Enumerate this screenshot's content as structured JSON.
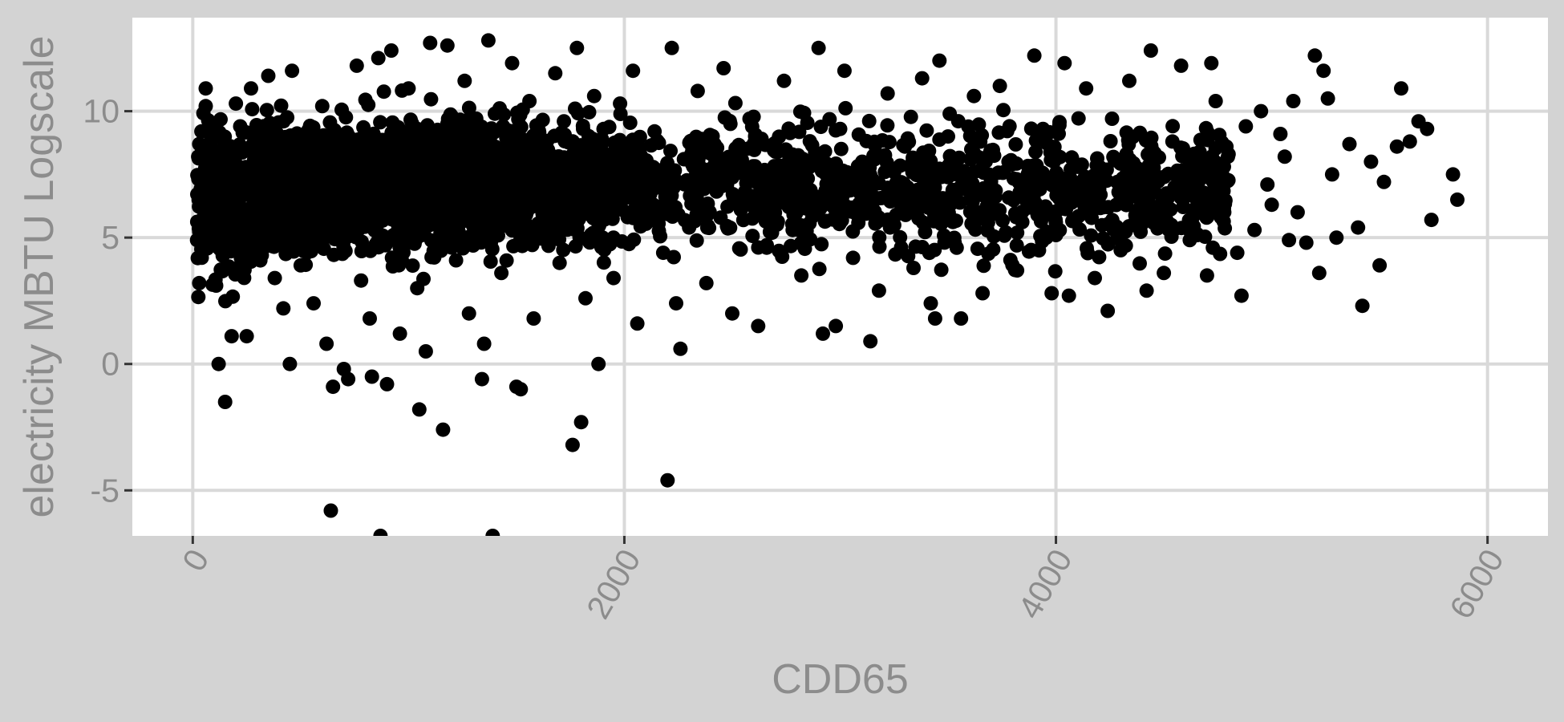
{
  "chart_data": {
    "type": "scatter",
    "title": "",
    "xlabel": "CDD65",
    "ylabel": "electricity MBTU Logscale",
    "xlim": [
      -280,
      6280
    ],
    "ylim": [
      -6.8,
      13.7
    ],
    "x_ticks": [
      0,
      2000,
      4000,
      6000
    ],
    "x_tick_labels": [
      "0",
      "2000",
      "4000",
      "6000"
    ],
    "y_ticks": [
      -5,
      0,
      5,
      10
    ],
    "y_tick_labels": [
      "-5",
      "0",
      "5",
      "10"
    ],
    "grid": true,
    "legend": "none",
    "colors": {
      "background": "#d3d3d3",
      "panel": "#ffffff",
      "grid": "#d9d9d9",
      "point": "#000000",
      "text": "#8c8c8c"
    },
    "points": [
      [
        20,
        4.9
      ],
      [
        30,
        8.7
      ],
      [
        40,
        9.2
      ],
      [
        25,
        8.2
      ],
      [
        60,
        10.2
      ],
      [
        60,
        10.9
      ],
      [
        50,
        5.8
      ],
      [
        80,
        5.5
      ],
      [
        30,
        3.2
      ],
      [
        70,
        7.3
      ],
      [
        120,
        0.0
      ],
      [
        150,
        -1.5
      ],
      [
        160,
        6.4
      ],
      [
        180,
        1.1
      ],
      [
        200,
        10.3
      ],
      [
        220,
        9.4
      ],
      [
        250,
        1.1
      ],
      [
        270,
        10.9
      ],
      [
        300,
        5.2
      ],
      [
        320,
        4.3
      ],
      [
        350,
        11.4
      ],
      [
        380,
        3.4
      ],
      [
        400,
        8.5
      ],
      [
        420,
        2.2
      ],
      [
        450,
        0.0
      ],
      [
        460,
        11.6
      ],
      [
        480,
        6.0
      ],
      [
        500,
        3.9
      ],
      [
        520,
        7.2
      ],
      [
        540,
        9.3
      ],
      [
        560,
        2.4
      ],
      [
        600,
        10.2
      ],
      [
        620,
        0.8
      ],
      [
        650,
        8.7
      ],
      [
        700,
        -0.2
      ],
      [
        720,
        -0.6
      ],
      [
        650,
        -0.9
      ],
      [
        640,
        -5.8
      ],
      [
        760,
        11.8
      ],
      [
        780,
        3.3
      ],
      [
        800,
        6.9
      ],
      [
        820,
        1.8
      ],
      [
        830,
        -0.5
      ],
      [
        860,
        12.1
      ],
      [
        880,
        4.7
      ],
      [
        900,
        -0.8
      ],
      [
        920,
        12.4
      ],
      [
        940,
        8.1
      ],
      [
        960,
        1.2
      ],
      [
        980,
        5.3
      ],
      [
        1000,
        10.9
      ],
      [
        1040,
        3.0
      ],
      [
        1050,
        -1.8
      ],
      [
        1080,
        0.5
      ],
      [
        1100,
        12.7
      ],
      [
        1130,
        7.7
      ],
      [
        1160,
        -2.6
      ],
      [
        1180,
        12.6
      ],
      [
        1200,
        9.8
      ],
      [
        1220,
        4.1
      ],
      [
        1240,
        6.3
      ],
      [
        1260,
        11.2
      ],
      [
        1280,
        2.0
      ],
      [
        1300,
        8.4
      ],
      [
        1320,
        5.8
      ],
      [
        1340,
        -0.6
      ],
      [
        1350,
        0.8
      ],
      [
        1370,
        12.8
      ],
      [
        1400,
        9.9
      ],
      [
        1430,
        3.6
      ],
      [
        1460,
        7.1
      ],
      [
        1480,
        11.9
      ],
      [
        1500,
        -0.9
      ],
      [
        1520,
        -1.0
      ],
      [
        1540,
        5.6
      ],
      [
        1560,
        10.4
      ],
      [
        1580,
        1.8
      ],
      [
        1620,
        8.8
      ],
      [
        1650,
        6.2
      ],
      [
        1680,
        11.5
      ],
      [
        1700,
        4.0
      ],
      [
        1720,
        9.6
      ],
      [
        1760,
        -3.2
      ],
      [
        1780,
        12.5
      ],
      [
        1800,
        -2.3
      ],
      [
        1820,
        2.6
      ],
      [
        1840,
        7.9
      ],
      [
        1860,
        10.6
      ],
      [
        1880,
        0.0
      ],
      [
        1900,
        5.0
      ],
      [
        1920,
        8.2
      ],
      [
        1950,
        3.4
      ],
      [
        1980,
        10.3
      ],
      [
        2000,
        6.6
      ],
      [
        2040,
        11.6
      ],
      [
        2060,
        1.6
      ],
      [
        2100,
        7.4
      ],
      [
        2140,
        9.2
      ],
      [
        2180,
        4.4
      ],
      [
        2200,
        -4.6
      ],
      [
        2220,
        12.5
      ],
      [
        2240,
        2.4
      ],
      [
        2260,
        0.6
      ],
      [
        2280,
        8.1
      ],
      [
        2300,
        5.4
      ],
      [
        2340,
        10.8
      ],
      [
        2380,
        3.2
      ],
      [
        2420,
        7.0
      ],
      [
        2460,
        11.7
      ],
      [
        2500,
        2.0
      ],
      [
        2540,
        6.1
      ],
      [
        2580,
        9.7
      ],
      [
        2620,
        1.5
      ],
      [
        2660,
        4.7
      ],
      [
        2700,
        8.4
      ],
      [
        2740,
        11.2
      ],
      [
        2780,
        5.3
      ],
      [
        2820,
        3.5
      ],
      [
        2860,
        7.8
      ],
      [
        2900,
        12.5
      ],
      [
        2920,
        1.2
      ],
      [
        2950,
        6.6
      ],
      [
        2980,
        1.5
      ],
      [
        3000,
        9.3
      ],
      [
        3020,
        11.6
      ],
      [
        3060,
        4.2
      ],
      [
        3100,
        7.7
      ],
      [
        3140,
        0.9
      ],
      [
        3180,
        2.9
      ],
      [
        3220,
        10.7
      ],
      [
        3260,
        5.9
      ],
      [
        3300,
        8.6
      ],
      [
        3340,
        3.8
      ],
      [
        3380,
        11.3
      ],
      [
        3400,
        6.3
      ],
      [
        3420,
        2.4
      ],
      [
        3440,
        1.8
      ],
      [
        3460,
        12.0
      ],
      [
        3500,
        9.0
      ],
      [
        3540,
        4.6
      ],
      [
        3560,
        1.8
      ],
      [
        3580,
        7.3
      ],
      [
        3620,
        10.6
      ],
      [
        3660,
        2.8
      ],
      [
        3700,
        5.9
      ],
      [
        3740,
        11.0
      ],
      [
        3780,
        8.0
      ],
      [
        3820,
        3.7
      ],
      [
        3860,
        6.5
      ],
      [
        3900,
        12.2
      ],
      [
        3940,
        9.3
      ],
      [
        3980,
        2.8
      ],
      [
        4000,
        5.1
      ],
      [
        4040,
        11.9
      ],
      [
        4060,
        2.7
      ],
      [
        4100,
        7.8
      ],
      [
        4140,
        10.9
      ],
      [
        4180,
        3.4
      ],
      [
        4220,
        6.2
      ],
      [
        4240,
        2.1
      ],
      [
        4260,
        9.7
      ],
      [
        4300,
        4.5
      ],
      [
        4340,
        11.2
      ],
      [
        4380,
        7.4
      ],
      [
        4420,
        2.9
      ],
      [
        4440,
        12.4
      ],
      [
        4460,
        5.6
      ],
      [
        4500,
        3.6
      ],
      [
        4540,
        8.8
      ],
      [
        4580,
        11.8
      ],
      [
        4620,
        4.9
      ],
      [
        4660,
        7.2
      ],
      [
        4700,
        3.5
      ],
      [
        4720,
        11.9
      ],
      [
        4740,
        10.4
      ],
      [
        4780,
        6.0
      ],
      [
        4800,
        8.3
      ],
      [
        4840,
        4.4
      ],
      [
        4860,
        2.7
      ],
      [
        4880,
        9.4
      ],
      [
        4920,
        5.3
      ],
      [
        4950,
        10.0
      ],
      [
        4980,
        7.1
      ],
      [
        5000,
        6.3
      ],
      [
        5040,
        9.1
      ],
      [
        5080,
        4.9
      ],
      [
        5120,
        6.0
      ],
      [
        5160,
        4.8
      ],
      [
        5200,
        12.2
      ],
      [
        5220,
        3.6
      ],
      [
        5240,
        11.6
      ],
      [
        5260,
        10.5
      ],
      [
        5280,
        7.5
      ],
      [
        5300,
        5.0
      ],
      [
        5360,
        8.7
      ],
      [
        5400,
        5.4
      ],
      [
        5420,
        2.3
      ],
      [
        5460,
        8.0
      ],
      [
        5500,
        3.9
      ],
      [
        5520,
        7.2
      ],
      [
        5580,
        8.6
      ],
      [
        5600,
        10.9
      ],
      [
        5640,
        8.8
      ],
      [
        5680,
        9.6
      ],
      [
        5720,
        9.3
      ],
      [
        5740,
        5.7
      ],
      [
        5840,
        7.5
      ],
      [
        5860,
        6.5
      ],
      [
        5100,
        10.4
      ],
      [
        5060,
        8.2
      ]
    ]
  }
}
